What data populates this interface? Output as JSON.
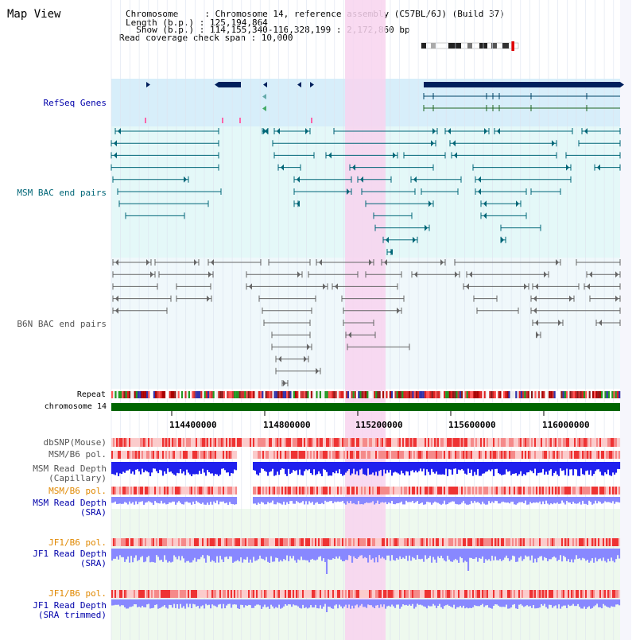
{
  "title": "Map View",
  "header": {
    "lines": [
      "Chromosome     : Chromosome 14, reference assembly (C57BL/6J) (Build 37)",
      "Length (b.p.) : 125,194,864",
      "  Show (b.p.) : 114,155,340-116,328,199 : 2,172,860 bp",
      "Read coverage check span : 10,000"
    ]
  },
  "tracks": {
    "refseq": "RefSeq Genes",
    "msm_bac": "MSM BAC end pairs",
    "b6n_bac": "B6N BAC end pairs",
    "repeat": "Repeat",
    "chromosome": "chromosome 14",
    "dbsnp": "dbSNP(Mouse)",
    "msm_b6_pol_1": "MSM/B6 pol.",
    "msm_depth_cap_1": "MSM Read Depth",
    "msm_depth_cap_2": "(Capillary)",
    "msm_b6_pol_2": "MSM/B6 pol.",
    "msm_depth_sra_1": "MSM Read Depth",
    "msm_depth_sra_2": "(SRA)",
    "jf1_b6_pol_1": "JF1/B6 pol.",
    "jf1_depth_sra_1": "JF1 Read Depth",
    "jf1_depth_sra_2": "(SRA)",
    "jf1_b6_pol_2": "JF1/B6 pol.",
    "jf1_depth_trim_1": "JF1 Read Depth",
    "jf1_depth_trim_2": "(SRA trimmed)"
  },
  "axis": {
    "ticks": [
      "114400000",
      "114800000",
      "115200000",
      "115600000",
      "116000000"
    ]
  },
  "colors": {
    "refseq_bg": "#d7eefa",
    "bac_bg": "#e4f8f8",
    "highlight": "#f8d4ef",
    "chrom": "#006600",
    "gene": "#001f5c",
    "msm_line": "#006677",
    "b6n_line": "#666666",
    "depth_blue": "#2020ee",
    "depth_light": "#8888ff"
  }
}
